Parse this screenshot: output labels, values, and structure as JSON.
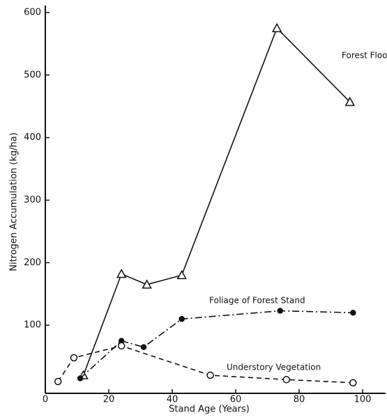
{
  "chart_data": {
    "type": "line",
    "x_label": "Stand Age (Years)",
    "y_label": "Nitrogen Accumulation (kg/ha)",
    "xlim": [
      0,
      100
    ],
    "xticks": [
      0,
      20,
      40,
      60,
      80,
      100
    ],
    "ylim": [
      0,
      600
    ],
    "yticks": [
      100,
      200,
      300,
      400,
      500,
      600
    ],
    "series": [
      {
        "name": "Forest Floor",
        "color": "#111111",
        "dash": "solid",
        "marker": "triangle",
        "x": [
          12,
          24,
          32,
          43,
          73,
          96
        ],
        "values": [
          20,
          182,
          165,
          180,
          575,
          457
        ]
      },
      {
        "name": "Foliage of Forest Stand",
        "color": "#111111",
        "dash": "dashdot",
        "marker": "filled-circle",
        "x": [
          11,
          24,
          31,
          43,
          74,
          97
        ],
        "values": [
          15,
          75,
          65,
          110,
          123,
          120
        ]
      },
      {
        "name": "Understory Vegetation",
        "color": "#111111",
        "dash": "dashed",
        "marker": "open-circle",
        "x": [
          4,
          9,
          24,
          52,
          76,
          97
        ],
        "values": [
          10,
          48,
          67,
          20,
          13,
          8
        ]
      }
    ]
  }
}
